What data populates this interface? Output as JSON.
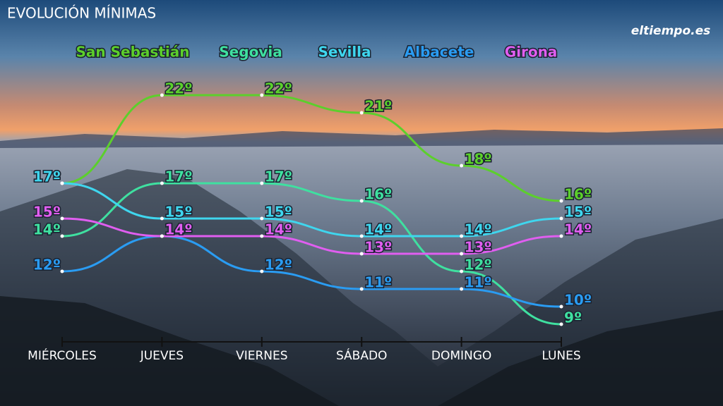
{
  "chart_data": {
    "type": "line",
    "title": "EVOLUCIÓN MÍNIMAS",
    "logo": "eltiempo.es",
    "categories": [
      "MIÉRCOLES",
      "JUEVES",
      "VIERNES",
      "SÁBADO",
      "DOMINGO",
      "LUNES"
    ],
    "series": [
      {
        "name": "San Sebastián",
        "color": "#5ccf2c",
        "values": [
          17,
          22,
          22,
          21,
          18,
          16
        ],
        "value_labels": [
          "17º",
          "22º",
          "22º",
          "21º",
          "18º",
          "16º"
        ]
      },
      {
        "name": "Segovia",
        "color": "#3fe0a0",
        "values": [
          14,
          17,
          17,
          16,
          12,
          9
        ],
        "value_labels": [
          "14º",
          "17º",
          "17º",
          "16º",
          "12º",
          "9º"
        ]
      },
      {
        "name": "Sevilla",
        "color": "#3fd6ee",
        "values": [
          17,
          15,
          15,
          14,
          14,
          15
        ],
        "value_labels": [
          "17º",
          "15º",
          "15º",
          "14º",
          "14º",
          "15º"
        ]
      },
      {
        "name": "Albacete",
        "color": "#2a9cf2",
        "values": [
          12,
          14,
          12,
          11,
          11,
          10
        ],
        "value_labels": [
          "12º",
          "14º",
          "12º",
          "11º",
          "11º",
          "10º"
        ]
      },
      {
        "name": "Girona",
        "color": "#e05ef0",
        "values": [
          15,
          14,
          14,
          13,
          13,
          14
        ],
        "value_labels": [
          "15º",
          "14º",
          "14º",
          "13º",
          "13º",
          "14º"
        ]
      }
    ]
  }
}
